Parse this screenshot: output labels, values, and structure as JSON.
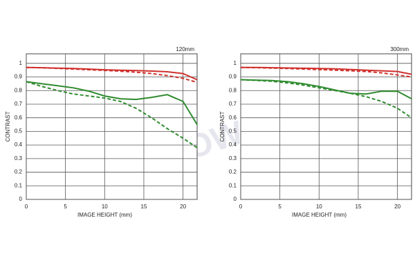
{
  "watermark": "CYFROWE.PL",
  "chart_data": [
    {
      "type": "line",
      "title": "120mm",
      "xlabel": "IMAGE HEIGHT (mm)",
      "ylabel": "CONTRAST",
      "x": [
        0,
        2,
        4,
        6,
        8,
        10,
        12,
        14,
        16,
        18,
        20,
        21.8
      ],
      "xlim": [
        0,
        21.8
      ],
      "xticks": [
        0,
        5,
        10,
        15,
        20
      ],
      "ylim": [
        0,
        1.07
      ],
      "yticks": [
        0,
        0.1,
        0.2,
        0.3,
        0.4,
        0.5,
        0.6,
        0.7,
        0.8,
        0.9,
        1
      ],
      "grid": true,
      "series": [
        {
          "color": "#d0302c",
          "dashed": false,
          "values": [
            0.97,
            0.968,
            0.965,
            0.962,
            0.958,
            0.953,
            0.95,
            0.947,
            0.943,
            0.938,
            0.925,
            0.88
          ]
        },
        {
          "color": "#d0302c",
          "dashed": true,
          "values": [
            0.97,
            0.967,
            0.963,
            0.958,
            0.953,
            0.948,
            0.942,
            0.935,
            0.925,
            0.91,
            0.89,
            0.86
          ]
        },
        {
          "color": "#2e8b2e",
          "dashed": false,
          "values": [
            0.865,
            0.85,
            0.835,
            0.82,
            0.795,
            0.76,
            0.74,
            0.735,
            0.75,
            0.77,
            0.72,
            0.55
          ]
        },
        {
          "color": "#2e8b2e",
          "dashed": true,
          "values": [
            0.865,
            0.83,
            0.8,
            0.775,
            0.76,
            0.745,
            0.72,
            0.67,
            0.6,
            0.52,
            0.45,
            0.38
          ]
        }
      ]
    },
    {
      "type": "line",
      "title": "300mm",
      "xlabel": "IMAGE HEIGHT (mm)",
      "ylabel": "CONTRAST",
      "x": [
        0,
        2,
        4,
        6,
        8,
        10,
        12,
        14,
        16,
        18,
        20,
        21.8
      ],
      "xlim": [
        0,
        21.8
      ],
      "xticks": [
        0,
        5,
        10,
        15,
        20
      ],
      "ylim": [
        0,
        1.07
      ],
      "yticks": [
        0,
        0.1,
        0.2,
        0.3,
        0.4,
        0.5,
        0.6,
        0.7,
        0.8,
        0.9,
        1
      ],
      "grid": true,
      "series": [
        {
          "color": "#d0302c",
          "dashed": false,
          "values": [
            0.97,
            0.97,
            0.968,
            0.966,
            0.964,
            0.962,
            0.96,
            0.955,
            0.95,
            0.945,
            0.94,
            0.92
          ]
        },
        {
          "color": "#d0302c",
          "dashed": true,
          "values": [
            0.97,
            0.968,
            0.965,
            0.962,
            0.958,
            0.954,
            0.95,
            0.945,
            0.94,
            0.93,
            0.915,
            0.9
          ]
        },
        {
          "color": "#2e8b2e",
          "dashed": false,
          "values": [
            0.88,
            0.877,
            0.873,
            0.865,
            0.85,
            0.83,
            0.805,
            0.78,
            0.775,
            0.795,
            0.795,
            0.74
          ]
        },
        {
          "color": "#2e8b2e",
          "dashed": true,
          "values": [
            0.88,
            0.875,
            0.868,
            0.856,
            0.84,
            0.82,
            0.8,
            0.78,
            0.755,
            0.72,
            0.67,
            0.6
          ]
        }
      ]
    }
  ]
}
